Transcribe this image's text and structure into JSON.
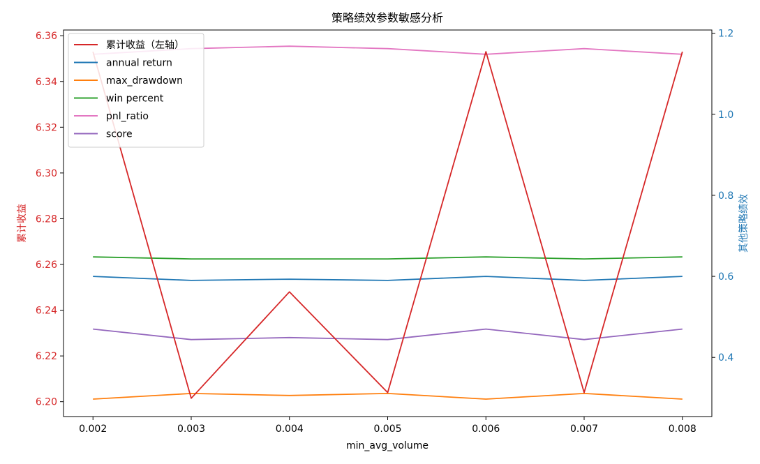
{
  "chart_data": {
    "type": "line",
    "title": "策略绩效参数敏感分析",
    "xlabel": "min_avg_volume",
    "ylabel_left": "累计收益",
    "ylabel_right": "其他策略绩效",
    "x": [
      0.002,
      0.003,
      0.004,
      0.005,
      0.006,
      0.007,
      0.008
    ],
    "x_tick_labels": [
      "0.002",
      "0.003",
      "0.004",
      "0.005",
      "0.006",
      "0.007",
      "0.008"
    ],
    "left_axis": {
      "range": [
        6.1935,
        6.3625
      ],
      "ticks": [
        6.2,
        6.22,
        6.24,
        6.26,
        6.28,
        6.3,
        6.32,
        6.34,
        6.36
      ],
      "tick_labels": [
        "6.20",
        "6.22",
        "6.24",
        "6.26",
        "6.28",
        "6.30",
        "6.32",
        "6.34",
        "6.36"
      ],
      "color": "#d62728"
    },
    "right_axis": {
      "range": [
        0.254,
        1.208
      ],
      "ticks": [
        0.4,
        0.6,
        0.8,
        1.0,
        1.2
      ],
      "tick_labels": [
        "0.4",
        "0.6",
        "0.8",
        "1.0",
        "1.2"
      ],
      "color": "#1f77b4"
    },
    "series": [
      {
        "name": "累计收益（左轴）",
        "axis": "left",
        "color": "#d62728",
        "values": [
          6.353,
          6.2015,
          6.248,
          6.204,
          6.353,
          6.204,
          6.353
        ]
      },
      {
        "name": "annual return",
        "axis": "right",
        "color": "#1f77b4",
        "values": [
          0.6,
          0.59,
          0.593,
          0.59,
          0.6,
          0.59,
          0.6
        ]
      },
      {
        "name": "max_drawdown",
        "axis": "right",
        "color": "#ff7f0e",
        "values": [
          0.297,
          0.311,
          0.306,
          0.311,
          0.297,
          0.311,
          0.297
        ]
      },
      {
        "name": "win percent",
        "axis": "right",
        "color": "#2ca02c",
        "values": [
          0.648,
          0.643,
          0.643,
          0.643,
          0.648,
          0.643,
          0.648
        ]
      },
      {
        "name": "pnl_ratio",
        "axis": "right",
        "color": "#e377c2",
        "values": [
          1.148,
          1.162,
          1.168,
          1.162,
          1.148,
          1.162,
          1.148
        ]
      },
      {
        "name": "score",
        "axis": "right",
        "color": "#9467bd",
        "values": [
          0.47,
          0.444,
          0.449,
          0.444,
          0.47,
          0.444,
          0.47
        ]
      }
    ],
    "grid": false,
    "legend_position": "upper-left"
  }
}
